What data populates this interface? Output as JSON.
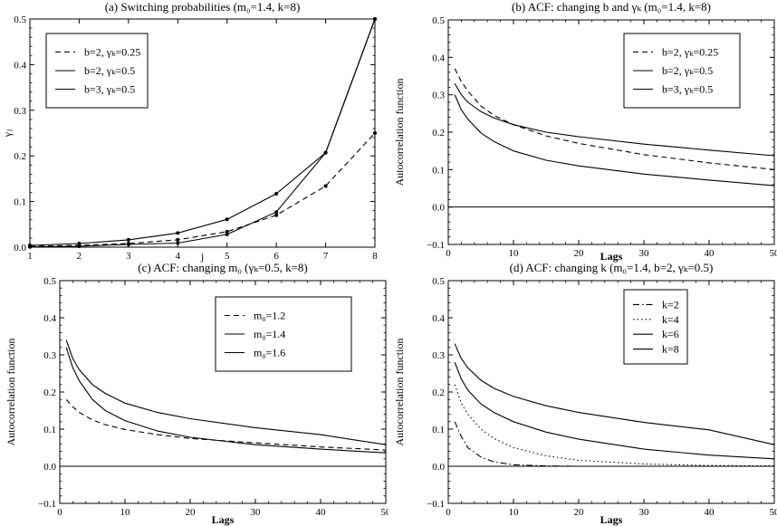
{
  "chart_data": [
    {
      "type": "line",
      "title": "(a) Switching probabilities (m₀=1.4, k=8)",
      "xlabel": "j",
      "ylabel": "γⱼ",
      "xlim": [
        1,
        8
      ],
      "ylim": [
        0,
        0.5
      ],
      "xticks": [
        "1",
        "2",
        "3",
        "4",
        "5",
        "6",
        "7",
        "8"
      ],
      "yticks": [
        "0.0",
        "0.1",
        "0.2",
        "0.3",
        "0.4",
        "0.5"
      ],
      "legend_position": "top-left",
      "markers": true,
      "x": [
        1,
        2,
        3,
        4,
        5,
        6,
        7,
        8
      ],
      "series": [
        {
          "name": "b=2, γₖ=0.25",
          "dash": "dashed",
          "values": [
            0.002,
            0.004,
            0.008,
            0.016,
            0.034,
            0.07,
            0.134,
            0.25
          ]
        },
        {
          "name": "b=2, γₖ=0.5",
          "dash": "solid",
          "values": [
            0.004,
            0.008,
            0.016,
            0.031,
            0.061,
            0.117,
            0.207,
            0.5
          ]
        },
        {
          "name": "b=3, γₖ=0.5",
          "dash": "solid",
          "values": [
            0.0005,
            0.002,
            0.006,
            0.009,
            0.028,
            0.077,
            0.207,
            0.5
          ]
        }
      ]
    },
    {
      "type": "line",
      "title": "(b) ACF: changing b and γₖ (m₀=1.4, k=8)",
      "xlabel": "Lags",
      "ylabel": "Autocorrelation function",
      "xlim": [
        0,
        50
      ],
      "ylim": [
        -0.1,
        0.5
      ],
      "xticks": [
        "0",
        "10",
        "20",
        "30",
        "40",
        "50"
      ],
      "yticks": [
        "−0.1",
        "0.0",
        "0.1",
        "0.2",
        "0.3",
        "0.4",
        "0.5"
      ],
      "legend_position": "top-right",
      "zero_line": true,
      "x": [
        1,
        2,
        3,
        5,
        7,
        10,
        15,
        20,
        30,
        40,
        50
      ],
      "series": [
        {
          "name": "b=2, γₖ=0.25",
          "dash": "dashed",
          "values": [
            0.37,
            0.335,
            0.31,
            0.27,
            0.245,
            0.22,
            0.19,
            0.17,
            0.14,
            0.118,
            0.1
          ]
        },
        {
          "name": "b=2, γₖ=0.5",
          "dash": "solid",
          "values": [
            0.33,
            0.3,
            0.28,
            0.255,
            0.238,
            0.22,
            0.2,
            0.188,
            0.168,
            0.152,
            0.137
          ]
        },
        {
          "name": "b=3, γₖ=0.5",
          "dash": "solid",
          "values": [
            0.3,
            0.26,
            0.235,
            0.198,
            0.175,
            0.15,
            0.125,
            0.11,
            0.088,
            0.072,
            0.057
          ]
        }
      ]
    },
    {
      "type": "line",
      "title": "(c) ACF: changing m₀ (γₖ=0.5, k=8)",
      "xlabel": "Lags",
      "ylabel": "Autocorrelation function",
      "xlim": [
        0,
        50
      ],
      "ylim": [
        -0.1,
        0.5
      ],
      "xticks": [
        "0",
        "10",
        "20",
        "30",
        "40",
        "50"
      ],
      "yticks": [
        "−0.1",
        "0.0",
        "0.1",
        "0.2",
        "0.3",
        "0.4",
        "0.5"
      ],
      "legend_position": "top-right",
      "zero_line": true,
      "x": [
        1,
        2,
        3,
        5,
        7,
        10,
        15,
        20,
        30,
        40,
        50
      ],
      "series": [
        {
          "name": "m₀=1.2",
          "dash": "dashed",
          "values": [
            0.18,
            0.16,
            0.145,
            0.125,
            0.112,
            0.099,
            0.085,
            0.075,
            0.063,
            0.052,
            0.044
          ]
        },
        {
          "name": "m₀=1.4",
          "dash": "solid",
          "values": [
            0.34,
            0.29,
            0.26,
            0.22,
            0.196,
            0.17,
            0.145,
            0.128,
            0.104,
            0.085,
            0.058
          ]
        },
        {
          "name": "m₀=1.6",
          "dash": "solid",
          "values": [
            0.32,
            0.265,
            0.23,
            0.18,
            0.15,
            0.123,
            0.095,
            0.078,
            0.058,
            0.046,
            0.036
          ]
        }
      ]
    },
    {
      "type": "line",
      "title": "(d) ACF: changing k (m₀=1.4, b=2, γₖ=0.5)",
      "xlabel": "Lags",
      "ylabel": "Autocorrelation function",
      "xlim": [
        0,
        50
      ],
      "ylim": [
        -0.1,
        0.5
      ],
      "xticks": [
        "0",
        "10",
        "20",
        "30",
        "40",
        "50"
      ],
      "yticks": [
        "−0.1",
        "0.0",
        "0.1",
        "0.2",
        "0.3",
        "0.4",
        "0.5"
      ],
      "legend_position": "top-right",
      "zero_line": true,
      "x": [
        1,
        2,
        3,
        5,
        7,
        10,
        15,
        20,
        30,
        40,
        50
      ],
      "series": [
        {
          "name": "k=2",
          "dash": "dashdot",
          "values": [
            0.12,
            0.08,
            0.05,
            0.025,
            0.012,
            0.004,
            0.001,
            0.0,
            0.0,
            0.0,
            0.0
          ]
        },
        {
          "name": "k=4",
          "dash": "dotted",
          "values": [
            0.22,
            0.17,
            0.14,
            0.1,
            0.075,
            0.05,
            0.028,
            0.016,
            0.006,
            0.002,
            0.001
          ]
        },
        {
          "name": "k=6",
          "dash": "solid",
          "values": [
            0.28,
            0.235,
            0.205,
            0.168,
            0.145,
            0.12,
            0.092,
            0.073,
            0.046,
            0.03,
            0.02
          ]
        },
        {
          "name": "k=8",
          "dash": "solid",
          "values": [
            0.33,
            0.29,
            0.265,
            0.232,
            0.21,
            0.188,
            0.163,
            0.145,
            0.118,
            0.098,
            0.058
          ]
        }
      ]
    }
  ]
}
